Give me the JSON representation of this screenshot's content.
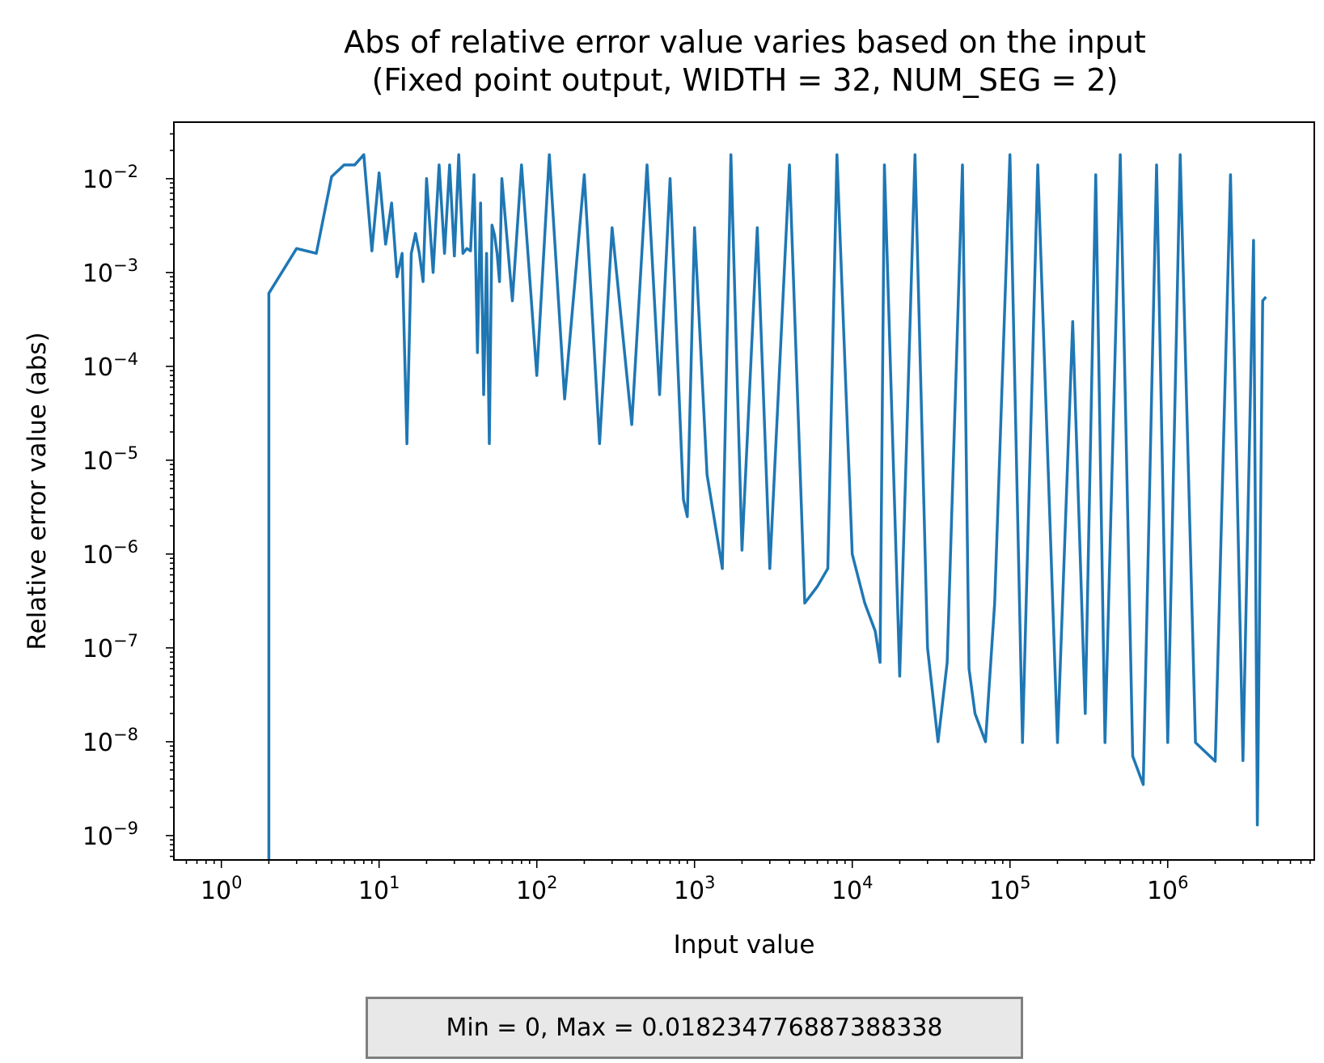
{
  "chart_data": {
    "type": "line",
    "title": [
      "Abs of relative error value varies based on the input",
      "(Fixed point output, WIDTH = 32, NUM_SEG = 2)"
    ],
    "xlabel": "Input value",
    "ylabel": "Relative error value (abs)",
    "xscale": "log",
    "yscale": "log",
    "xlim": [
      0.5,
      8500000
    ],
    "ylim": [
      5.5e-10,
      0.04
    ],
    "x_ticks": [
      {
        "base": "10",
        "exp": "0"
      },
      {
        "base": "10",
        "exp": "1"
      },
      {
        "base": "10",
        "exp": "2"
      },
      {
        "base": "10",
        "exp": "3"
      },
      {
        "base": "10",
        "exp": "4"
      },
      {
        "base": "10",
        "exp": "5"
      },
      {
        "base": "10",
        "exp": "6"
      }
    ],
    "y_ticks": [
      {
        "base": "10",
        "exp": "−2"
      },
      {
        "base": "10",
        "exp": "−3"
      },
      {
        "base": "10",
        "exp": "−4"
      },
      {
        "base": "10",
        "exp": "−5"
      },
      {
        "base": "10",
        "exp": "−6"
      },
      {
        "base": "10",
        "exp": "−7"
      },
      {
        "base": "10",
        "exp": "−8"
      },
      {
        "base": "10",
        "exp": "−9"
      }
    ],
    "grid": false,
    "series": [
      {
        "color": "#1f77b4",
        "x": [
          2,
          2,
          3,
          4,
          5,
          6,
          7,
          8,
          9,
          10,
          11,
          12,
          13,
          14,
          15,
          16,
          17,
          18,
          19,
          20,
          22,
          24,
          26,
          28,
          30,
          32,
          34,
          36,
          38,
          40,
          42,
          44,
          46,
          48,
          50,
          52,
          54,
          56,
          58,
          60,
          70,
          80,
          100,
          120,
          150,
          200,
          250,
          300,
          400,
          500,
          600,
          700,
          850,
          900,
          1000,
          1200,
          1500,
          1700,
          2000,
          2500,
          3000,
          4000,
          5000,
          6000,
          7000,
          8000,
          10000,
          12000,
          14000,
          15000,
          16000,
          20000,
          25000,
          30000,
          35000,
          40000,
          50000,
          55000,
          60000,
          70000,
          80000,
          100000,
          120000,
          150000,
          200000,
          250000,
          300000,
          350000,
          400000,
          500000,
          600000,
          700000,
          850000,
          1000000,
          1200000,
          1500000,
          2000000,
          2500000,
          3000000,
          3500000,
          3700000,
          4000000,
          4200000
        ],
        "y": [
          5.5e-10,
          0.0006,
          0.0018,
          0.0016,
          0.0105,
          0.014,
          0.014,
          0.018,
          0.0017,
          0.0115,
          0.002,
          0.0055,
          0.0009,
          0.0016,
          1.5e-05,
          0.0016,
          0.0026,
          0.0016,
          0.0008,
          0.01,
          0.001,
          0.014,
          0.0016,
          0.014,
          0.0015,
          0.018,
          0.0016,
          0.0018,
          0.0017,
          0.011,
          0.00014,
          0.0055,
          5e-05,
          0.0016,
          1.5e-05,
          0.0032,
          0.0025,
          0.0016,
          0.0008,
          0.01,
          0.0005,
          0.014,
          8e-05,
          0.018,
          4.5e-05,
          0.011,
          1.5e-05,
          0.003,
          2.4e-05,
          0.014,
          5e-05,
          0.01,
          3.8e-06,
          2.5e-06,
          0.003,
          7e-06,
          7e-07,
          0.018,
          1.1e-06,
          0.003,
          7e-07,
          0.014,
          3e-07,
          4.5e-07,
          7e-07,
          0.018,
          1e-06,
          3e-07,
          1.5e-07,
          7e-08,
          0.014,
          5e-08,
          0.018,
          1e-07,
          1e-08,
          7e-08,
          0.014,
          6e-08,
          2e-08,
          1e-08,
          3e-07,
          0.018,
          9.8e-09,
          0.014,
          9.8e-09,
          0.0003,
          2e-08,
          0.011,
          9.8e-09,
          0.018,
          7e-09,
          3.5e-09,
          0.014,
          9.8e-09,
          0.018,
          9.8e-09,
          6.2e-09,
          0.011,
          6.3e-09,
          0.0022,
          1.3e-09,
          0.0005,
          0.00055
        ]
      }
    ],
    "annotation": "Min = 0, Max = 0.018234776887388338"
  }
}
